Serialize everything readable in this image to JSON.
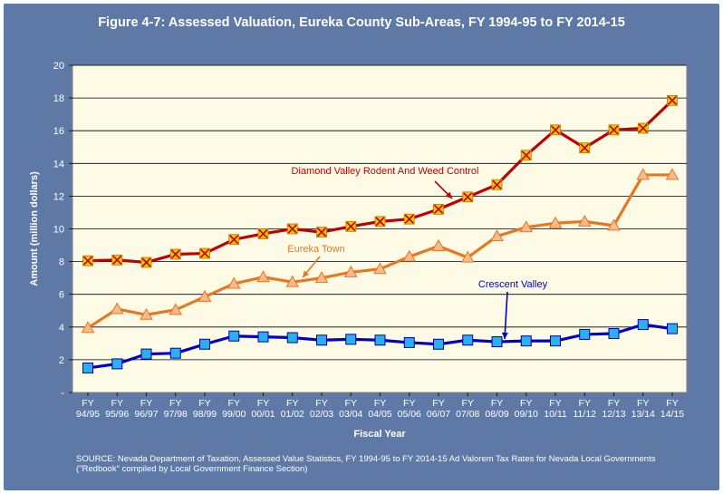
{
  "title": "Figure 4-7: Assessed Valuation, Eureka County Sub-Areas, FY 1994-95 to FY 2014-15",
  "source": "SOURCE: Nevada Department of Taxation, Assessed Value Statistics, FY 1994-95 to FY 2014-15  Ad Valorem Tax Rates for Nevada Local Governments (\"Redbook\" compiled by Local Government Finance Section)",
  "colors": {
    "panel_bg": "#5f79a6",
    "plot_bg": "#fdfbe6",
    "diamond_line": "#c00000",
    "diamond_marker_fill": "#f6c400",
    "eureka_line": "#e87722",
    "eureka_marker_fill": "#f8b98b",
    "crescent_line": "#0000cc",
    "crescent_marker_fill": "#2ab0ef"
  },
  "chart_data": {
    "type": "line",
    "title": "Figure 4-7: Assessed Valuation, Eureka County Sub-Areas, FY 1994-95 to FY 2014-15",
    "xlabel": "Fiscal Year",
    "ylabel": "Amount (million dollars)",
    "ylim": [
      0,
      20
    ],
    "yticks": [
      "-",
      "2",
      "4",
      "6",
      "8",
      "10",
      "12",
      "14",
      "16",
      "18",
      "20"
    ],
    "grid": "horizontal",
    "categories": [
      [
        "FY",
        "94/95"
      ],
      [
        "FY",
        "95/96"
      ],
      [
        "FY",
        "96/97"
      ],
      [
        "FY",
        "97/98"
      ],
      [
        "FY",
        "98/99"
      ],
      [
        "FY",
        "99/00"
      ],
      [
        "FY",
        "00/01"
      ],
      [
        "FY",
        "01/02"
      ],
      [
        "FY",
        "02/03"
      ],
      [
        "FY",
        "03/04"
      ],
      [
        "FY",
        "04/05"
      ],
      [
        "FY",
        "05/06"
      ],
      [
        "FY",
        "06/07"
      ],
      [
        "FY",
        "07/08"
      ],
      [
        "FY",
        "08/09"
      ],
      [
        "FY",
        "09/10"
      ],
      [
        "FY",
        "10/11"
      ],
      [
        "FY",
        "11/12"
      ],
      [
        "FY",
        "12/13"
      ],
      [
        "FY",
        "13/14"
      ],
      [
        "FY",
        "14/15"
      ]
    ],
    "series": [
      {
        "name": "Diamond Valley Rodent And Weed Control",
        "marker": "x-square",
        "values": [
          8.05,
          8.1,
          7.95,
          8.45,
          8.5,
          9.35,
          9.7,
          10.0,
          9.8,
          10.15,
          10.45,
          10.6,
          11.2,
          11.95,
          12.7,
          14.5,
          16.05,
          14.95,
          16.05,
          16.15,
          17.85
        ],
        "label_text": "Diamond Valley Rodent And Weed Control"
      },
      {
        "name": "Eureka Town",
        "marker": "triangle",
        "values": [
          3.95,
          5.1,
          4.75,
          5.05,
          5.85,
          6.65,
          7.05,
          6.75,
          7.0,
          7.35,
          7.55,
          8.3,
          8.95,
          8.25,
          9.55,
          10.1,
          10.35,
          10.45,
          10.2,
          13.3,
          13.3
        ],
        "label_text": "Eureka Town"
      },
      {
        "name": "Crescent Valley",
        "marker": "square",
        "values": [
          1.5,
          1.75,
          2.35,
          2.4,
          2.95,
          3.45,
          3.4,
          3.35,
          3.2,
          3.25,
          3.2,
          3.05,
          2.95,
          3.2,
          3.1,
          3.15,
          3.15,
          3.55,
          3.6,
          4.15,
          3.9
        ],
        "label_text": "Crescent Valley"
      }
    ]
  }
}
